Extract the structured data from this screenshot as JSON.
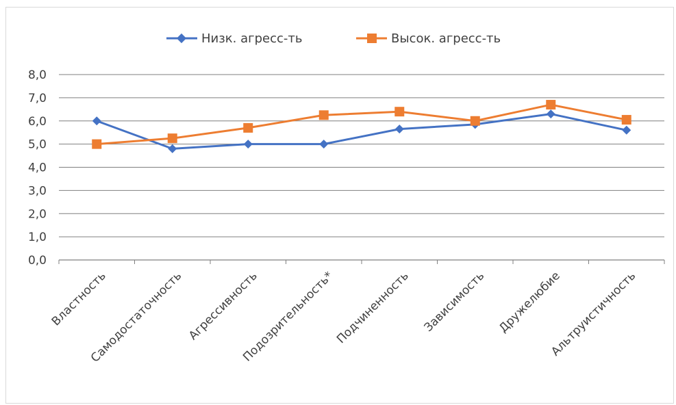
{
  "chart_data": {
    "type": "line",
    "categories": [
      "Властность",
      "Самодостаточность",
      "Агрессивность",
      "Подозрительность*",
      "Подчиненность",
      "Зависимость",
      "Дружелюбие",
      "Альтруистичность"
    ],
    "series": [
      {
        "name": "Низк. агресс-ть",
        "color": "#4472c4",
        "marker": "diamond",
        "values": [
          6.0,
          4.8,
          5.0,
          5.0,
          5.65,
          5.85,
          6.3,
          5.6
        ]
      },
      {
        "name": "Высок. агресс-ть",
        "color": "#ed7d31",
        "marker": "square",
        "values": [
          5.0,
          5.25,
          5.7,
          6.25,
          6.4,
          6.0,
          6.7,
          6.05
        ]
      }
    ],
    "ylim": [
      0,
      8
    ],
    "yticks": [
      "0,0",
      "1,0",
      "2,0",
      "3,0",
      "4,0",
      "5,0",
      "6,0",
      "7,0",
      "8,0"
    ],
    "grid": true,
    "legend_position": "top"
  }
}
